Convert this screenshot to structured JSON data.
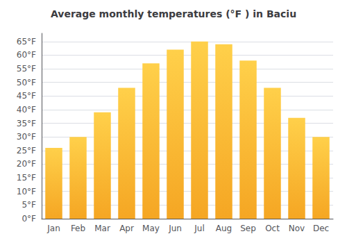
{
  "chart_data": {
    "type": "bar",
    "title": "Average monthly temperatures (°F ) in Baciu",
    "categories": [
      "Jan",
      "Feb",
      "Mar",
      "Apr",
      "May",
      "Jun",
      "Jul",
      "Aug",
      "Sep",
      "Oct",
      "Nov",
      "Dec"
    ],
    "values": [
      26,
      30,
      39,
      48,
      57,
      62,
      65,
      64,
      58,
      48,
      37,
      30
    ],
    "color": [
      "#F5A623",
      "#FFD04A"
    ],
    "ylim": [
      0,
      68
    ],
    "yticks": [
      {
        "value": 0,
        "label": "0°F"
      },
      {
        "value": 5,
        "label": "5°F"
      },
      {
        "value": 10,
        "label": "10°F"
      },
      {
        "value": 15,
        "label": "15°F"
      },
      {
        "value": 20,
        "label": "20°F"
      },
      {
        "value": 25,
        "label": "25°F"
      },
      {
        "value": 30,
        "label": "30°F"
      },
      {
        "value": 35,
        "label": "35°F"
      },
      {
        "value": 40,
        "label": "40°F"
      },
      {
        "value": 45,
        "label": "45°F"
      },
      {
        "value": 50,
        "label": "50°F"
      },
      {
        "value": 55,
        "label": "55°F"
      },
      {
        "value": 60,
        "label": "60°F"
      },
      {
        "value": 65,
        "label": "65°F"
      }
    ],
    "grid": true
  }
}
